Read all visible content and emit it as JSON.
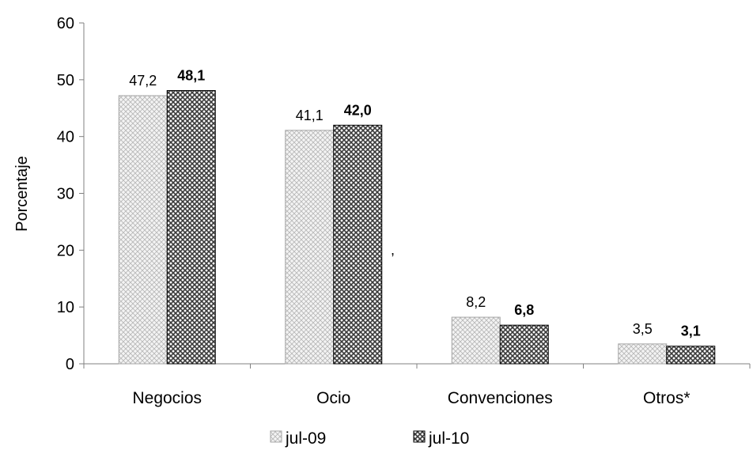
{
  "chart_data": {
    "type": "bar",
    "title": "",
    "xlabel": "",
    "ylabel": "Porcentaje",
    "ylim": [
      0,
      60
    ],
    "yticks": [
      "0",
      "10",
      "20",
      "30",
      "40",
      "50",
      "60"
    ],
    "categories": [
      "Negocios",
      "Ocio",
      "Convenciones",
      "Otros*"
    ],
    "series": [
      {
        "name": "jul-09",
        "values": [
          47.2,
          41.1,
          8.2,
          3.5
        ],
        "labels": [
          "47,2",
          "41,1",
          "8,2",
          "3,5"
        ],
        "pattern": "light-crosshatch",
        "color": "#d9d9d9",
        "label_bold": false
      },
      {
        "name": "jul-10",
        "values": [
          48.1,
          42.0,
          6.8,
          3.1
        ],
        "labels": [
          "48,1",
          "42,0",
          "6,8",
          "3,1"
        ],
        "pattern": "dark-crosshatch",
        "color": "#595959",
        "label_bold": true
      }
    ],
    "legend_position": "bottom",
    "grid": false,
    "annotation": ","
  }
}
